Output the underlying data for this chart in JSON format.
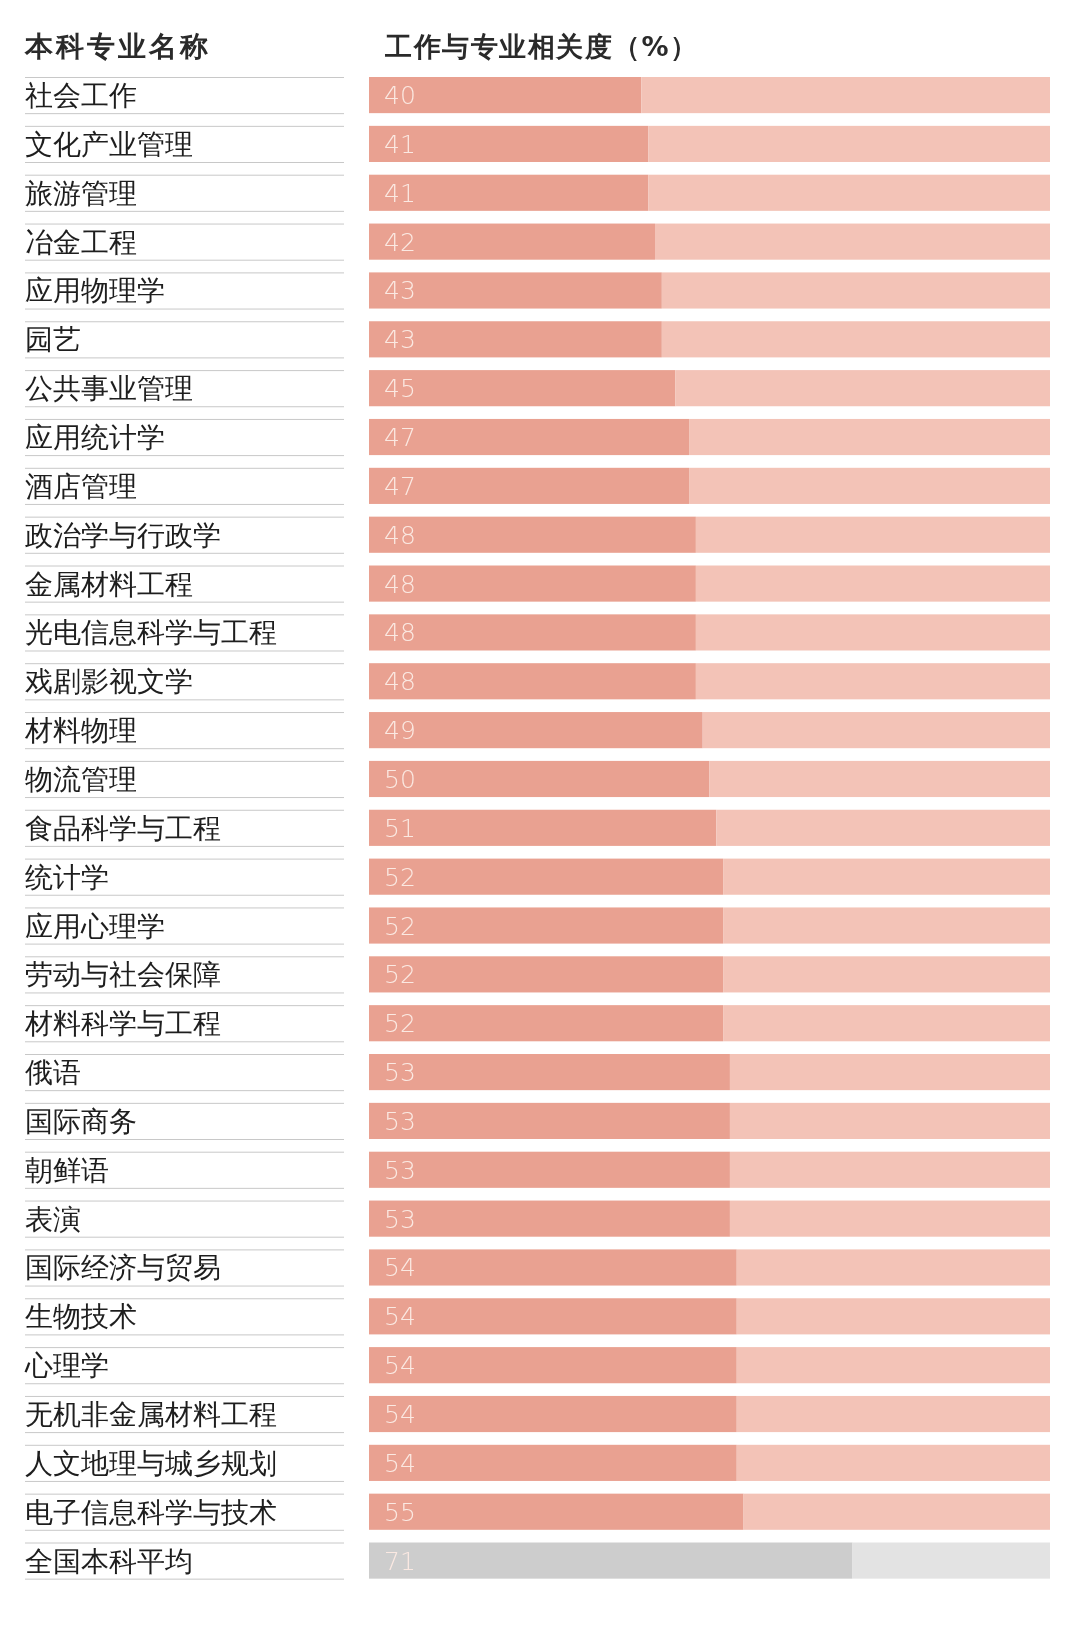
{
  "chart_data": {
    "type": "bar",
    "orientation": "horizontal",
    "stacked": true,
    "xlabel": "工作与专业相关度（%）",
    "ylabel": "本科专业名称",
    "categories": [
      "社会工作",
      "文化产业管理",
      "旅游管理",
      "冶金工程",
      "应用物理学",
      "园艺",
      "公共事业管理",
      "应用统计学",
      "酒店管理",
      "政治学与行政学",
      "金属材料工程",
      "光电信息科学与工程",
      "戏剧影视文学",
      "材料物理",
      "物流管理",
      "食品科学与工程",
      "统计学",
      "应用心理学",
      "劳动与社会保障",
      "材料科学与工程",
      "俄语",
      "国际商务",
      "朝鲜语",
      "表演",
      "国际经济与贸易",
      "生物技术",
      "心理学",
      "无机非金属材料工程",
      "人文地理与城乡规划",
      "电子信息科学与技术",
      "全国本科平均"
    ],
    "xlim": [
      0,
      100
    ],
    "tick_labels": "y",
    "series": [
      {
        "values": [
          40,
          41,
          41,
          42,
          43,
          43,
          45,
          47,
          47,
          48,
          48,
          48,
          48,
          49,
          50,
          51,
          52,
          52,
          52,
          52,
          53,
          53,
          53,
          53,
          54,
          54,
          54,
          54,
          54,
          55,
          71
        ],
        "value_labels": [
          "40",
          "41",
          "41",
          "42",
          "43",
          "43",
          "45",
          "47",
          "47",
          "48",
          "48",
          "48",
          "48",
          "49",
          "50",
          "51",
          "52",
          "52",
          "52",
          "52",
          "53",
          "53",
          "53",
          "53",
          "54",
          "54",
          "54",
          "54",
          "54",
          "55",
          "71"
        ],
        "colors": [
          "#e9a191",
          "#e9a191",
          "#e9a191",
          "#e9a191",
          "#e9a191",
          "#e9a191",
          "#e9a191",
          "#e9a191",
          "#e9a191",
          "#e9a191",
          "#e9a191",
          "#e9a191",
          "#e9a191",
          "#e9a191",
          "#e9a191",
          "#e9a191",
          "#e9a191",
          "#e9a191",
          "#e9a191",
          "#e9a191",
          "#e9a191",
          "#e9a191",
          "#e9a191",
          "#e9a191",
          "#e9a191",
          "#e9a191",
          "#e9a191",
          "#e9a191",
          "#e9a191",
          "#e9a191",
          "#cdcdcd"
        ]
      },
      {
        "values": [
          60,
          59,
          59,
          58,
          57,
          57,
          55,
          53,
          53,
          52,
          52,
          52,
          52,
          51,
          50,
          49,
          48,
          48,
          48,
          48,
          47,
          47,
          47,
          47,
          46,
          46,
          46,
          46,
          46,
          45,
          29
        ],
        "colors": [
          "#f3c3b7",
          "#f3c3b7",
          "#f3c3b7",
          "#f3c3b7",
          "#f3c3b7",
          "#f3c3b7",
          "#f3c3b7",
          "#f3c3b7",
          "#f3c3b7",
          "#f3c3b7",
          "#f3c3b7",
          "#f3c3b7",
          "#f3c3b7",
          "#f3c3b7",
          "#f3c3b7",
          "#f3c3b7",
          "#f3c3b7",
          "#f3c3b7",
          "#f3c3b7",
          "#f3c3b7",
          "#f3c3b7",
          "#f3c3b7",
          "#f3c3b7",
          "#f3c3b7",
          "#f3c3b7",
          "#f3c3b7",
          "#f3c3b7",
          "#f3c3b7",
          "#f3c3b7",
          "#f3c3b7",
          "#e3e3e3"
        ]
      }
    ]
  }
}
